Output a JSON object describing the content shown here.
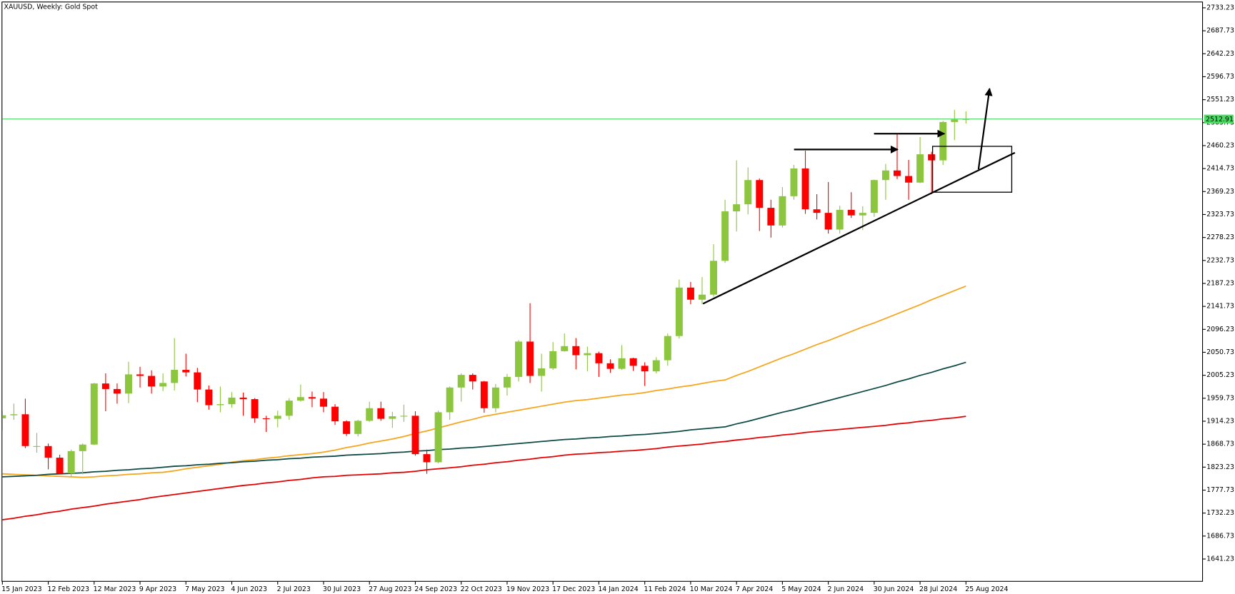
{
  "chart_data": {
    "type": "candlestick",
    "title": "XAUUSD, Weekly:  Gold Spot",
    "categories": [
      "15 Jan 2023",
      null,
      null,
      null,
      "12 Feb 2023",
      null,
      null,
      null,
      "12 Mar 2023",
      null,
      null,
      null,
      "9 Apr 2023",
      null,
      null,
      null,
      "7 May 2023",
      null,
      null,
      null,
      "4 Jun 2023",
      null,
      null,
      null,
      "2 Jul 2023",
      null,
      null,
      null,
      "30 Jul 2023",
      null,
      null,
      null,
      "27 Aug 2023",
      null,
      null,
      null,
      "24 Sep 2023",
      null,
      null,
      null,
      "22 Oct 2023",
      null,
      null,
      null,
      "19 Nov 2023",
      null,
      null,
      null,
      "17 Dec 2023",
      null,
      null,
      null,
      "14 Jan 2024",
      null,
      null,
      null,
      "11 Feb 2024",
      null,
      null,
      null,
      "10 Mar 2024",
      null,
      null,
      null,
      "7 Apr 2024",
      null,
      null,
      null,
      "5 May 2024",
      null,
      null,
      null,
      "2 Jun 2024",
      null,
      null,
      null,
      "30 Jun 2024",
      null,
      null,
      null,
      "28 Jul 2024",
      null,
      null,
      null,
      "25 Aug 2024"
    ],
    "open": [
      1920,
      1926,
      1928,
      1865,
      1865,
      1842,
      1811,
      1855,
      1868,
      1989,
      1978,
      1969,
      2007,
      2004,
      1983,
      1990,
      2016,
      2011,
      1977,
      1946,
      1948,
      1961,
      1958,
      1920,
      1919,
      1925,
      1955,
      1962,
      1959,
      1943,
      1914,
      1889,
      1915,
      1940,
      1919,
      1924,
      1925,
      1849,
      1833,
      1932,
      1981,
      2006,
      1993,
      1940,
      1981,
      2002,
      2072,
      2004,
      2019,
      2053,
      2063,
      2045,
      2049,
      2029,
      2018,
      2039,
      2024,
      2013,
      2035,
      2083,
      2179,
      2155,
      2165,
      2232,
      2330,
      2344,
      2392,
      2337,
      2302,
      2360,
      2415,
      2334,
      2327,
      2294,
      2333,
      2322,
      2327,
      2392,
      2411,
      2400,
      2387,
      2443,
      2431,
      2507,
      2512
    ],
    "high": [
      1935,
      1949,
      1959,
      1891,
      1870,
      1848,
      1858,
      1870,
      1990,
      2009,
      1989,
      2032,
      2022,
      2015,
      2009,
      2079,
      2048,
      2020,
      1985,
      1983,
      1972,
      1971,
      1960,
      1925,
      1935,
      1960,
      1987,
      1973,
      1972,
      1948,
      1916,
      1917,
      1953,
      1953,
      1933,
      1947,
      1934,
      1858,
      1935,
      1983,
      2009,
      2009,
      1994,
      1988,
      2008,
      2075,
      2148,
      2048,
      2071,
      2088,
      2079,
      2062,
      2052,
      2037,
      2065,
      2040,
      2031,
      2041,
      2088,
      2195,
      2190,
      2200,
      2265,
      2353,
      2431,
      2417,
      2395,
      2353,
      2378,
      2422,
      2450,
      2364,
      2388,
      2341,
      2368,
      2340,
      2393,
      2424,
      2484,
      2432,
      2477,
      2448,
      2509,
      2531,
      2528
    ],
    "low": [
      1896,
      1917,
      1861,
      1852,
      1819,
      1809,
      1805,
      1809,
      1867,
      1934,
      1949,
      1950,
      1981,
      1969,
      1974,
      1975,
      2003,
      1952,
      1937,
      1932,
      1941,
      1925,
      1911,
      1893,
      1902,
      1917,
      1953,
      1942,
      1932,
      1907,
      1885,
      1884,
      1913,
      1915,
      1901,
      1913,
      1846,
      1810,
      1831,
      1917,
      1953,
      1977,
      1931,
      1932,
      1965,
      1993,
      1990,
      1973,
      2016,
      2052,
      2017,
      2013,
      2002,
      2010,
      2016,
      2014,
      1984,
      2009,
      2024,
      2078,
      2146,
      2146,
      2161,
      2228,
      2290,
      2324,
      2291,
      2278,
      2298,
      2353,
      2325,
      2314,
      2286,
      2286,
      2317,
      2293,
      2319,
      2353,
      2394,
      2353,
      2386,
      2364,
      2422,
      2471,
      2504
    ],
    "close": [
      1926,
      1928,
      1865,
      1865,
      1842,
      1811,
      1855,
      1868,
      1989,
      1978,
      1969,
      2007,
      2004,
      1983,
      1990,
      2016,
      2011,
      1977,
      1946,
      1948,
      1961,
      1958,
      1920,
      1919,
      1925,
      1955,
      1962,
      1959,
      1943,
      1914,
      1889,
      1915,
      1940,
      1919,
      1924,
      1925,
      1849,
      1833,
      1932,
      1981,
      2006,
      1993,
      1940,
      1981,
      2002,
      2072,
      2004,
      2019,
      2053,
      2063,
      2045,
      2049,
      2029,
      2018,
      2039,
      2024,
      2013,
      2035,
      2083,
      2179,
      2155,
      2165,
      2232,
      2330,
      2344,
      2392,
      2337,
      2302,
      2360,
      2415,
      2334,
      2327,
      2294,
      2333,
      2322,
      2327,
      2392,
      2411,
      2400,
      2387,
      2443,
      2431,
      2507,
      2512,
      2512.91
    ],
    "up_color": "#8cc63f",
    "down_color": "#ff0000",
    "overlays": [
      {
        "color": "#f7a51c",
        "values": [
          1810,
          1809,
          1808,
          1807,
          1806,
          1805,
          1804,
          1803,
          1804,
          1806,
          1807,
          1809,
          1810,
          1812,
          1813,
          1816,
          1820,
          1823,
          1826,
          1829,
          1833,
          1836,
          1838,
          1841,
          1843,
          1846,
          1848,
          1850,
          1853,
          1857,
          1862,
          1866,
          1871,
          1875,
          1879,
          1884,
          1890,
          1895,
          1901,
          1907,
          1913,
          1918,
          1924,
          1928,
          1932,
          1936,
          1940,
          1944,
          1948,
          1952,
          1955,
          1957,
          1960,
          1963,
          1966,
          1968,
          1971,
          1975,
          1978,
          1982,
          1985,
          1989,
          1993,
          1996,
          2005,
          2013,
          2022,
          2031,
          2040,
          2048,
          2057,
          2066,
          2074,
          2083,
          2092,
          2101,
          2109,
          2118,
          2127,
          2136,
          2145,
          2155,
          2164,
          2173,
          2182
        ]
      },
      {
        "color": "#0e4a44",
        "values": [
          1804,
          1805,
          1806,
          1807,
          1809,
          1810,
          1811,
          1812,
          1814,
          1815,
          1817,
          1818,
          1820,
          1821,
          1823,
          1825,
          1826,
          1828,
          1829,
          1831,
          1832,
          1834,
          1835,
          1837,
          1838,
          1840,
          1841,
          1843,
          1844,
          1845,
          1847,
          1848,
          1849,
          1850,
          1852,
          1853,
          1855,
          1856,
          1858,
          1859,
          1861,
          1862,
          1864,
          1866,
          1868,
          1870,
          1872,
          1874,
          1876,
          1878,
          1879,
          1881,
          1882,
          1884,
          1885,
          1887,
          1888,
          1890,
          1892,
          1894,
          1897,
          1899,
          1901,
          1903,
          1909,
          1914,
          1920,
          1926,
          1932,
          1937,
          1943,
          1949,
          1955,
          1961,
          1967,
          1973,
          1979,
          1985,
          1992,
          1998,
          2005,
          2011,
          2018,
          2024,
          2031
        ]
      },
      {
        "color": "#e50000",
        "values": [
          1719,
          1722,
          1726,
          1729,
          1733,
          1736,
          1740,
          1743,
          1746,
          1750,
          1753,
          1756,
          1759,
          1763,
          1766,
          1769,
          1772,
          1775,
          1778,
          1781,
          1784,
          1787,
          1789,
          1792,
          1794,
          1797,
          1799,
          1802,
          1804,
          1805,
          1807,
          1808,
          1809,
          1810,
          1812,
          1813,
          1815,
          1818,
          1820,
          1822,
          1824,
          1827,
          1829,
          1832,
          1834,
          1837,
          1839,
          1842,
          1844,
          1847,
          1849,
          1850,
          1852,
          1853,
          1855,
          1856,
          1858,
          1860,
          1863,
          1865,
          1867,
          1869,
          1872,
          1874,
          1877,
          1879,
          1882,
          1884,
          1887,
          1889,
          1892,
          1894,
          1896,
          1898,
          1900,
          1902,
          1904,
          1906,
          1909,
          1911,
          1914,
          1916,
          1919,
          1921,
          1924
        ]
      }
    ],
    "last_price": 2512.91,
    "last_price_color": "#4cd964",
    "ylim": [
      1597,
      2744
    ],
    "yticks": [
      1641.23,
      1686.73,
      1732.23,
      1777.73,
      1823.23,
      1868.73,
      1914.23,
      1959.73,
      2005.23,
      2050.73,
      2096.23,
      2141.73,
      2187.23,
      2232.73,
      2278.23,
      2323.73,
      2369.23,
      2414.73,
      2460.23,
      2505.73,
      2551.23,
      2596.73,
      2642.23,
      2687.73,
      2733.23
    ]
  }
}
